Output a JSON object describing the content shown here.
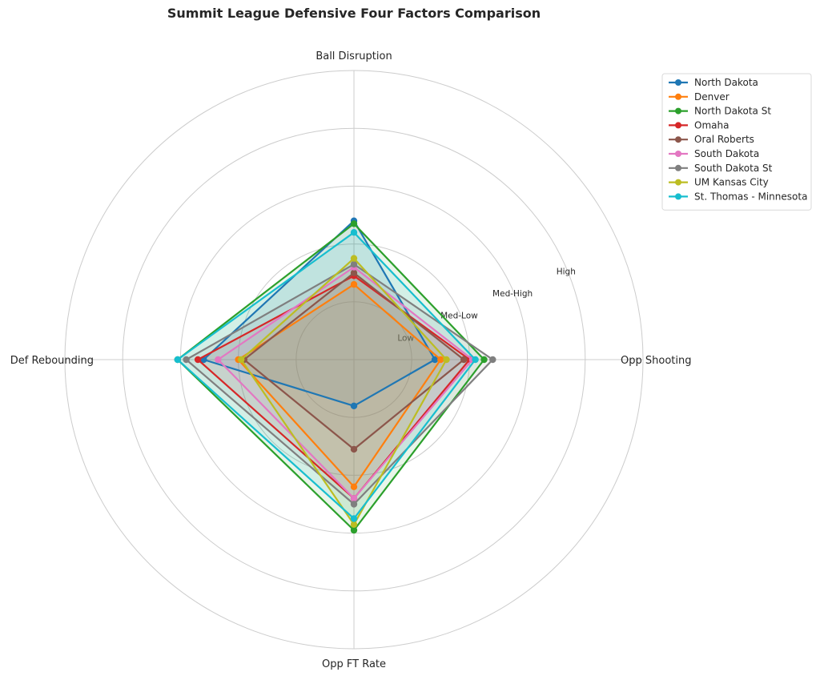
{
  "chart_data": {
    "type": "radar",
    "title": "Summit League Defensive Four Factors Comparison",
    "axes": [
      "Ball Disruption",
      "Opp Shooting",
      "Opp FT Rate",
      "Def Rebounding"
    ],
    "rings": [
      {
        "label": "Low"
      },
      {
        "label": "Med-Low"
      },
      {
        "label": "Med-High"
      },
      {
        "label": "High"
      }
    ],
    "rlim": [
      0,
      5
    ],
    "grid": true,
    "legend_position": "upper right outside",
    "series": [
      {
        "name": "North Dakota",
        "color": "#1f77b4",
        "values": [
          2.4,
          1.4,
          0.8,
          2.6
        ]
      },
      {
        "name": "Denver",
        "color": "#ff7f0e",
        "values": [
          1.3,
          1.5,
          2.2,
          2.0
        ]
      },
      {
        "name": "North Dakota St",
        "color": "#2ca02c",
        "values": [
          2.35,
          2.25,
          2.95,
          3.05
        ]
      },
      {
        "name": "Omaha",
        "color": "#d62728",
        "values": [
          1.45,
          2.0,
          2.4,
          2.7
        ]
      },
      {
        "name": "Oral Roberts",
        "color": "#8c564b",
        "values": [
          1.5,
          1.9,
          1.55,
          1.9
        ]
      },
      {
        "name": "South Dakota",
        "color": "#e377c2",
        "values": [
          1.6,
          2.05,
          2.4,
          2.35
        ]
      },
      {
        "name": "South Dakota St",
        "color": "#7f7f7f",
        "values": [
          1.65,
          2.4,
          2.5,
          2.9
        ]
      },
      {
        "name": "UM Kansas City",
        "color": "#bcbd22",
        "values": [
          1.75,
          1.6,
          2.85,
          1.95
        ]
      },
      {
        "name": "St. Thomas - Minnesota",
        "color": "#17becf",
        "values": [
          2.2,
          2.1,
          2.75,
          3.05
        ]
      }
    ]
  }
}
